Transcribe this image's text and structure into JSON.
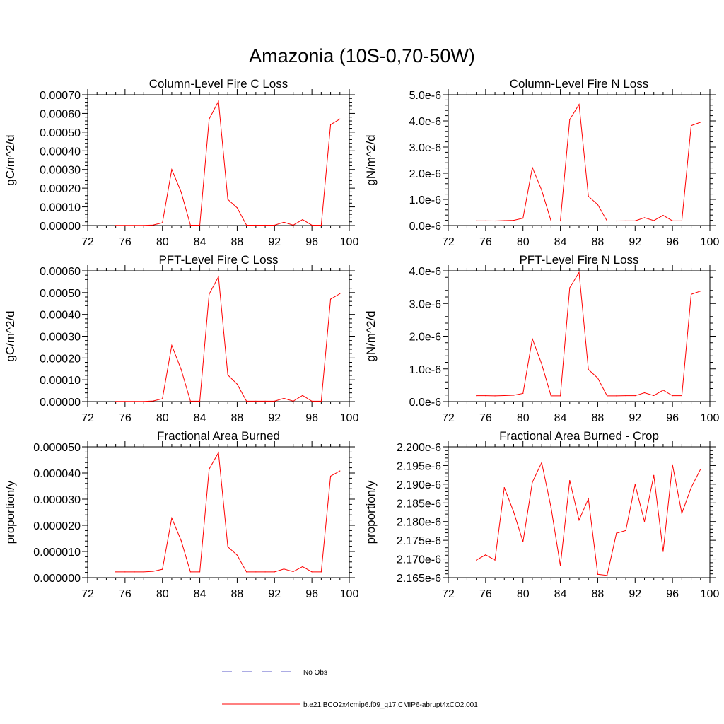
{
  "title": "Amazonia (10S-0,70-50W)",
  "legend": {
    "items": [
      {
        "label": "No Obs",
        "color": "#5a5ac8",
        "style": "dashed"
      },
      {
        "label": "b.e21.BCO2x4cmip6.f09_g17.CMIP6-abrupt4xCO2.001",
        "color": "#ff0000",
        "style": "solid"
      }
    ]
  },
  "chart_data": [
    {
      "type": "line",
      "title": "Column-Level Fire C Loss",
      "ylabel": "gC/m^2/d",
      "xlim": [
        72,
        100
      ],
      "xticks": [
        72,
        76,
        80,
        84,
        88,
        92,
        96,
        100
      ],
      "xtick_labels": [
        "72",
        "76",
        "80",
        "84",
        "88",
        "92",
        "96",
        "100"
      ],
      "ylim": [
        0,
        0.0007
      ],
      "yticks": [
        0,
        0.0001,
        0.0002,
        0.0003,
        0.0004,
        0.0005,
        0.0006,
        0.0007
      ],
      "ytick_labels": [
        "0.00000",
        "0.00010",
        "0.00020",
        "0.00030",
        "0.00040",
        "0.00050",
        "0.00060",
        "0.00070"
      ],
      "series": [
        {
          "name": "b.e21.BCO2x4cmip6.f09_g17.CMIP6-abrupt4xCO2.001",
          "color": "#ff0000",
          "x": [
            75,
            76,
            77,
            78,
            79,
            80,
            81,
            82,
            83,
            84,
            85,
            86,
            87,
            88,
            89,
            90,
            91,
            92,
            93,
            94,
            95,
            96,
            97,
            98,
            99
          ],
          "y": [
            1e-06,
            1e-06,
            1e-06,
            1e-06,
            3e-06,
            1.5e-05,
            0.0003,
            0.00018,
            2e-06,
            2e-06,
            0.00057,
            0.000665,
            0.00014,
            9.5e-05,
            2e-06,
            2e-06,
            2e-06,
            2e-06,
            1.8e-05,
            2e-06,
            3.2e-05,
            2e-06,
            2e-06,
            0.00054,
            0.00057
          ]
        }
      ]
    },
    {
      "type": "line",
      "title": "Column-Level Fire N Loss",
      "ylabel": "gN/m^2/d",
      "xlim": [
        72,
        100
      ],
      "xticks": [
        72,
        76,
        80,
        84,
        88,
        92,
        96,
        100
      ],
      "xtick_labels": [
        "72",
        "76",
        "80",
        "84",
        "88",
        "92",
        "96",
        "100"
      ],
      "ylim": [
        0,
        5e-06
      ],
      "yticks": [
        0,
        1e-06,
        2e-06,
        3e-06,
        4e-06,
        5e-06
      ],
      "ytick_labels": [
        "0.0e-6",
        "1.0e-6",
        "2.0e-6",
        "3.0e-6",
        "4.0e-6",
        "5.0e-6"
      ],
      "series": [
        {
          "name": "b.e21.BCO2x4cmip6.f09_g17.CMIP6-abrupt4xCO2.001",
          "color": "#ff0000",
          "x": [
            75,
            76,
            77,
            78,
            79,
            80,
            81,
            82,
            83,
            84,
            85,
            86,
            87,
            88,
            89,
            90,
            91,
            92,
            93,
            94,
            95,
            96,
            97,
            98,
            99
          ],
          "y": [
            1.8e-07,
            1.8e-07,
            1.75e-07,
            1.9e-07,
            2e-07,
            2.8e-07,
            2.22e-06,
            1.35e-06,
            1.75e-07,
            1.75e-07,
            4.05e-06,
            4.63e-06,
            1.12e-06,
            8e-07,
            1.75e-07,
            1.75e-07,
            1.8e-07,
            1.8e-07,
            3e-07,
            1.9e-07,
            3.9e-07,
            1.8e-07,
            1.8e-07,
            3.82e-06,
            3.95e-06
          ]
        }
      ]
    },
    {
      "type": "line",
      "title": "PFT-Level Fire C Loss",
      "ylabel": "gC/m^2/d",
      "xlim": [
        72,
        100
      ],
      "xticks": [
        72,
        76,
        80,
        84,
        88,
        92,
        96,
        100
      ],
      "xtick_labels": [
        "72",
        "76",
        "80",
        "84",
        "88",
        "92",
        "96",
        "100"
      ],
      "ylim": [
        0,
        0.0006
      ],
      "yticks": [
        0,
        0.0001,
        0.0002,
        0.0003,
        0.0004,
        0.0005,
        0.0006
      ],
      "ytick_labels": [
        "0.00000",
        "0.00010",
        "0.00020",
        "0.00030",
        "0.00040",
        "0.00050",
        "0.00060"
      ],
      "series": [
        {
          "name": "b.e21.BCO2x4cmip6.f09_g17.CMIP6-abrupt4xCO2.001",
          "color": "#ff0000",
          "x": [
            75,
            76,
            77,
            78,
            79,
            80,
            81,
            82,
            83,
            84,
            85,
            86,
            87,
            88,
            89,
            90,
            91,
            92,
            93,
            94,
            95,
            96,
            97,
            98,
            99
          ],
          "y": [
            1e-06,
            1e-06,
            1e-06,
            1e-06,
            3e-06,
            1.3e-05,
            0.000258,
            0.000148,
            2e-06,
            2e-06,
            0.000493,
            0.000573,
            0.000122,
            8e-05,
            2e-06,
            2e-06,
            2e-06,
            2e-06,
            1.5e-05,
            2e-06,
            2.8e-05,
            2e-06,
            2e-06,
            0.00047,
            0.000495
          ]
        }
      ]
    },
    {
      "type": "line",
      "title": "PFT-Level Fire N Loss",
      "ylabel": "gN/m^2/d",
      "xlim": [
        72,
        100
      ],
      "xticks": [
        72,
        76,
        80,
        84,
        88,
        92,
        96,
        100
      ],
      "xtick_labels": [
        "72",
        "76",
        "80",
        "84",
        "88",
        "92",
        "96",
        "100"
      ],
      "ylim": [
        0,
        4e-06
      ],
      "yticks": [
        0,
        1e-06,
        2e-06,
        3e-06,
        4e-06
      ],
      "ytick_labels": [
        "0.0e-6",
        "1.0e-6",
        "2.0e-6",
        "3.0e-6",
        "4.0e-6"
      ],
      "series": [
        {
          "name": "b.e21.BCO2x4cmip6.f09_g17.CMIP6-abrupt4xCO2.001",
          "color": "#ff0000",
          "x": [
            75,
            76,
            77,
            78,
            79,
            80,
            81,
            82,
            83,
            84,
            85,
            86,
            87,
            88,
            89,
            90,
            91,
            92,
            93,
            94,
            95,
            96,
            97,
            98,
            99
          ],
          "y": [
            1.8e-07,
            1.8e-07,
            1.75e-07,
            1.85e-07,
            1.95e-07,
            2.5e-07,
            1.92e-06,
            1.15e-06,
            1.75e-07,
            1.75e-07,
            3.48e-06,
            3.95e-06,
            9.8e-07,
            7.2e-07,
            1.75e-07,
            1.75e-07,
            1.8e-07,
            1.8e-07,
            2.7e-07,
            1.85e-07,
            3.5e-07,
            1.8e-07,
            1.8e-07,
            3.28e-06,
            3.38e-06
          ]
        }
      ]
    },
    {
      "type": "line",
      "title": "Fractional Area Burned",
      "ylabel": "proportion/y",
      "xlim": [
        72,
        100
      ],
      "xticks": [
        72,
        76,
        80,
        84,
        88,
        92,
        96,
        100
      ],
      "xtick_labels": [
        "72",
        "76",
        "80",
        "84",
        "88",
        "92",
        "96",
        "100"
      ],
      "ylim": [
        0,
        5e-05
      ],
      "yticks": [
        0,
        1e-05,
        2e-05,
        3e-05,
        4e-05,
        5e-05
      ],
      "ytick_labels": [
        "0.000000",
        "0.000010",
        "0.000020",
        "0.000030",
        "0.000040",
        "0.000050"
      ],
      "series": [
        {
          "name": "b.e21.BCO2x4cmip6.f09_g17.CMIP6-abrupt4xCO2.001",
          "color": "#ff0000",
          "x": [
            75,
            76,
            77,
            78,
            79,
            80,
            81,
            82,
            83,
            84,
            85,
            86,
            87,
            88,
            89,
            90,
            91,
            92,
            93,
            94,
            95,
            96,
            97,
            98,
            99
          ],
          "y": [
            2.2e-06,
            2.2e-06,
            2.2e-06,
            2.2e-06,
            2.4e-06,
            3.2e-06,
            2.28e-05,
            1.42e-05,
            2.2e-06,
            2.2e-06,
            4.15e-05,
            4.78e-05,
            1.18e-05,
            8.6e-06,
            2.2e-06,
            2.2e-06,
            2.2e-06,
            2.2e-06,
            3.3e-06,
            2.3e-06,
            4.2e-06,
            2.2e-06,
            2.2e-06,
            3.88e-05,
            4.08e-05
          ]
        }
      ]
    },
    {
      "type": "line",
      "title": "Fractional Area Burned - Crop",
      "ylabel": "proportion/y",
      "xlim": [
        72,
        100
      ],
      "xticks": [
        72,
        76,
        80,
        84,
        88,
        92,
        96,
        100
      ],
      "xtick_labels": [
        "72",
        "76",
        "80",
        "84",
        "88",
        "92",
        "96",
        "100"
      ],
      "ylim": [
        2.165e-06,
        2.2e-06
      ],
      "yticks": [
        2.165e-06,
        2.17e-06,
        2.175e-06,
        2.18e-06,
        2.185e-06,
        2.19e-06,
        2.195e-06,
        2.2e-06
      ],
      "ytick_labels": [
        "2.165e-6",
        "2.170e-6",
        "2.175e-6",
        "2.180e-6",
        "2.185e-6",
        "2.190e-6",
        "2.195e-6",
        "2.200e-6"
      ],
      "series": [
        {
          "name": "b.e21.BCO2x4cmip6.f09_g17.CMIP6-abrupt4xCO2.001",
          "color": "#ff0000",
          "x": [
            75,
            76,
            77,
            78,
            79,
            80,
            81,
            82,
            83,
            84,
            85,
            86,
            87,
            88,
            89,
            90,
            91,
            92,
            93,
            94,
            95,
            96,
            97,
            98,
            99
          ],
          "y": [
            2.1697e-06,
            2.1711e-06,
            2.1697e-06,
            2.1891e-06,
            2.1826e-06,
            2.1746e-06,
            2.1905e-06,
            2.1958e-06,
            2.1838e-06,
            2.1682e-06,
            2.191e-06,
            2.1804e-06,
            2.1861e-06,
            2.1659e-06,
            2.1656e-06,
            2.1769e-06,
            2.1776e-06,
            2.1899e-06,
            2.18e-06,
            2.1924e-06,
            2.172e-06,
            2.1952e-06,
            2.1822e-06,
            2.1891e-06,
            2.194e-06
          ]
        }
      ]
    }
  ]
}
